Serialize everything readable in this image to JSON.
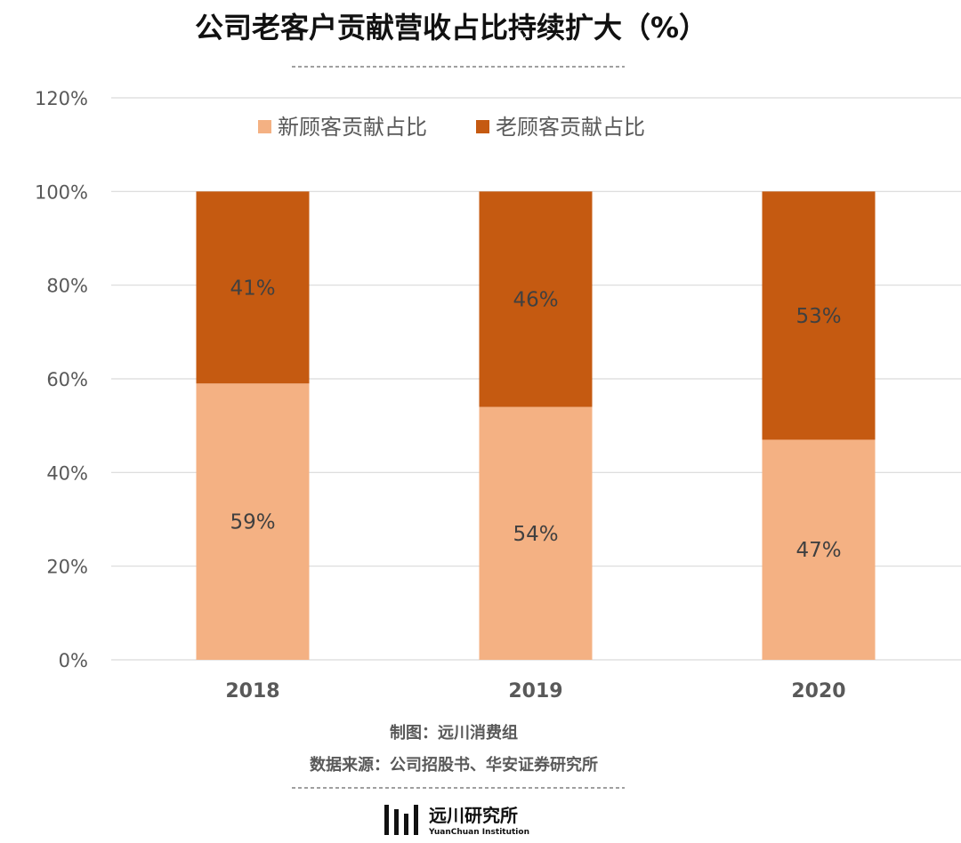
{
  "chart_data": {
    "type": "bar",
    "stacked": true,
    "title": "公司老客户贡献营收占比持续扩大（%）",
    "categories": [
      "2018",
      "2019",
      "2020"
    ],
    "series": [
      {
        "name": "新顾客贡献占比",
        "values": [
          59,
          54,
          47
        ],
        "labels": [
          "59%",
          "54%",
          "47%"
        ],
        "color": "#F4B183"
      },
      {
        "name": "老顾客贡献占比",
        "values": [
          41,
          46,
          53
        ],
        "labels": [
          "41%",
          "46%",
          "53%"
        ],
        "color": "#C55A11"
      }
    ],
    "ylim": [
      0,
      120
    ],
    "yticks": [
      "0%",
      "20%",
      "40%",
      "60%",
      "80%",
      "100%",
      "120%"
    ],
    "grid": true,
    "legend_position": "top",
    "xlabel": "",
    "ylabel": ""
  },
  "footer": {
    "credit": "制图：远川消费组",
    "source": "数据来源：公司招股书、华安证券研究所"
  },
  "logo": {
    "name_cn": "远川研究所",
    "name_en": "YuanChuan Institution"
  },
  "colors": {
    "grid": "#D9D9D9",
    "text": "#595959",
    "divider": "#808080"
  }
}
